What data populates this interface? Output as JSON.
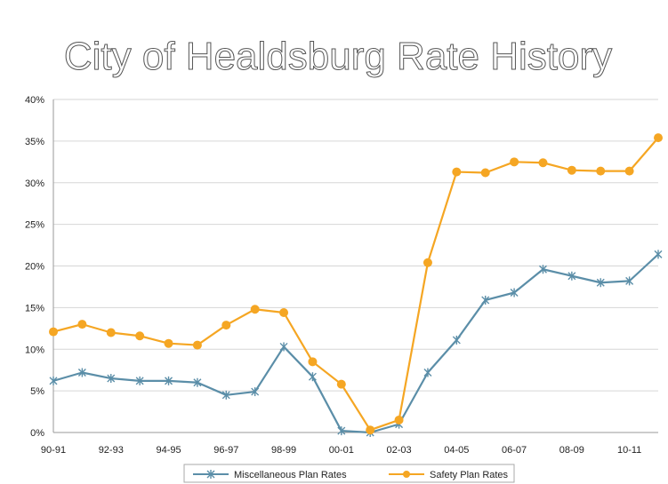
{
  "chart_data": {
    "type": "line",
    "title": "City of Healdsburg Rate History",
    "xlabel": "",
    "ylabel": "",
    "x": [
      "90-91",
      "91-92",
      "92-93",
      "93-94",
      "94-95",
      "95-96",
      "96-97",
      "97-98",
      "98-99",
      "99-00",
      "00-01",
      "01-02",
      "02-03",
      "03-04",
      "04-05",
      "05-06",
      "06-07",
      "07-08",
      "08-09",
      "09-10",
      "10-11",
      "11-12"
    ],
    "x_tick_labels": [
      "90-91",
      "92-93",
      "94-95",
      "96-97",
      "98-99",
      "00-01",
      "02-03",
      "04-05",
      "06-07",
      "08-09",
      "10-11"
    ],
    "ylim": [
      0,
      40
    ],
    "y_ticks": [
      0,
      5,
      10,
      15,
      20,
      25,
      30,
      35,
      40
    ],
    "y_tick_labels": [
      "0%",
      "5%",
      "10%",
      "15%",
      "20%",
      "25%",
      "30%",
      "35%",
      "40%"
    ],
    "grid": true,
    "legend_position": "bottom",
    "series": [
      {
        "name": "Miscellaneous Plan Rates",
        "color": "#5b8ea8",
        "marker": "star",
        "values": [
          6.2,
          7.2,
          6.5,
          6.2,
          6.2,
          6.0,
          4.5,
          4.9,
          10.3,
          6.7,
          0.2,
          0.0,
          1.0,
          7.2,
          11.1,
          15.9,
          16.8,
          19.6,
          18.8,
          18.0,
          18.2,
          21.4
        ]
      },
      {
        "name": "Safety Plan Rates",
        "color": "#f5a623",
        "marker": "circle",
        "values": [
          12.1,
          13.0,
          12.0,
          11.6,
          10.7,
          10.5,
          12.9,
          14.8,
          14.4,
          8.5,
          5.8,
          0.3,
          1.5,
          20.4,
          31.3,
          31.2,
          32.5,
          32.4,
          31.5,
          31.4,
          31.4,
          35.4
        ]
      }
    ]
  }
}
